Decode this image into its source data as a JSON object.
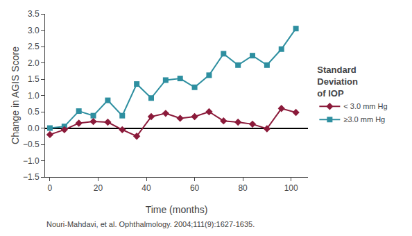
{
  "chart_data": {
    "type": "line",
    "xlabel": "Time (months)",
    "ylabel": "Change in AGIS Score",
    "legend_title": "Standard\nDeviation\nof IOP",
    "legend": "right",
    "grid": false,
    "series": [
      {
        "name": "≥3.0 mm Hg",
        "color": "#2E8FA0",
        "marker": "square",
        "x": [
          0,
          6,
          12,
          18,
          24,
          30,
          36,
          42,
          48,
          54,
          60,
          66,
          72,
          78,
          84,
          90,
          96,
          102
        ],
        "values": [
          0.0,
          0.05,
          0.52,
          0.38,
          0.85,
          0.38,
          1.35,
          0.92,
          1.47,
          1.52,
          1.25,
          1.62,
          2.28,
          1.93,
          2.22,
          1.93,
          2.42,
          3.05
        ]
      },
      {
        "name": "< 3.0 mm Hg",
        "color": "#8B1A3A",
        "marker": "diamond",
        "x": [
          0,
          6,
          12,
          18,
          24,
          30,
          36,
          42,
          48,
          54,
          60,
          66,
          72,
          78,
          84,
          90,
          96,
          102
        ],
        "values": [
          -0.2,
          -0.05,
          0.15,
          0.2,
          0.18,
          -0.05,
          -0.25,
          0.35,
          0.45,
          0.3,
          0.35,
          0.5,
          0.22,
          0.18,
          0.12,
          -0.02,
          0.6,
          0.48
        ]
      }
    ],
    "xlim": [
      -2,
      107
    ],
    "xticks": [
      0,
      20,
      40,
      60,
      80,
      100
    ],
    "ylim": [
      -1.5,
      3.5
    ],
    "yticks": [
      {
        "value": -1.5,
        "label": "−1.5"
      },
      {
        "value": -1.0,
        "label": "−1.0"
      },
      {
        "value": -0.5,
        "label": "−0.5"
      },
      {
        "value": 0.0,
        "label": "0.0"
      },
      {
        "value": 0.5,
        "label": "0.5"
      },
      {
        "value": 1.0,
        "label": "1.0"
      },
      {
        "value": 1.5,
        "label": "1.5"
      },
      {
        "value": 2.0,
        "label": "2.0"
      },
      {
        "value": 2.5,
        "label": "2.5"
      },
      {
        "value": 3.0,
        "label": "3.0"
      },
      {
        "value": 3.5,
        "label": "3.5"
      }
    ],
    "annotations": [
      "Nouri-Mahdavi, et al. Ophthalmology. 2004;111(9):1627-1635."
    ]
  }
}
